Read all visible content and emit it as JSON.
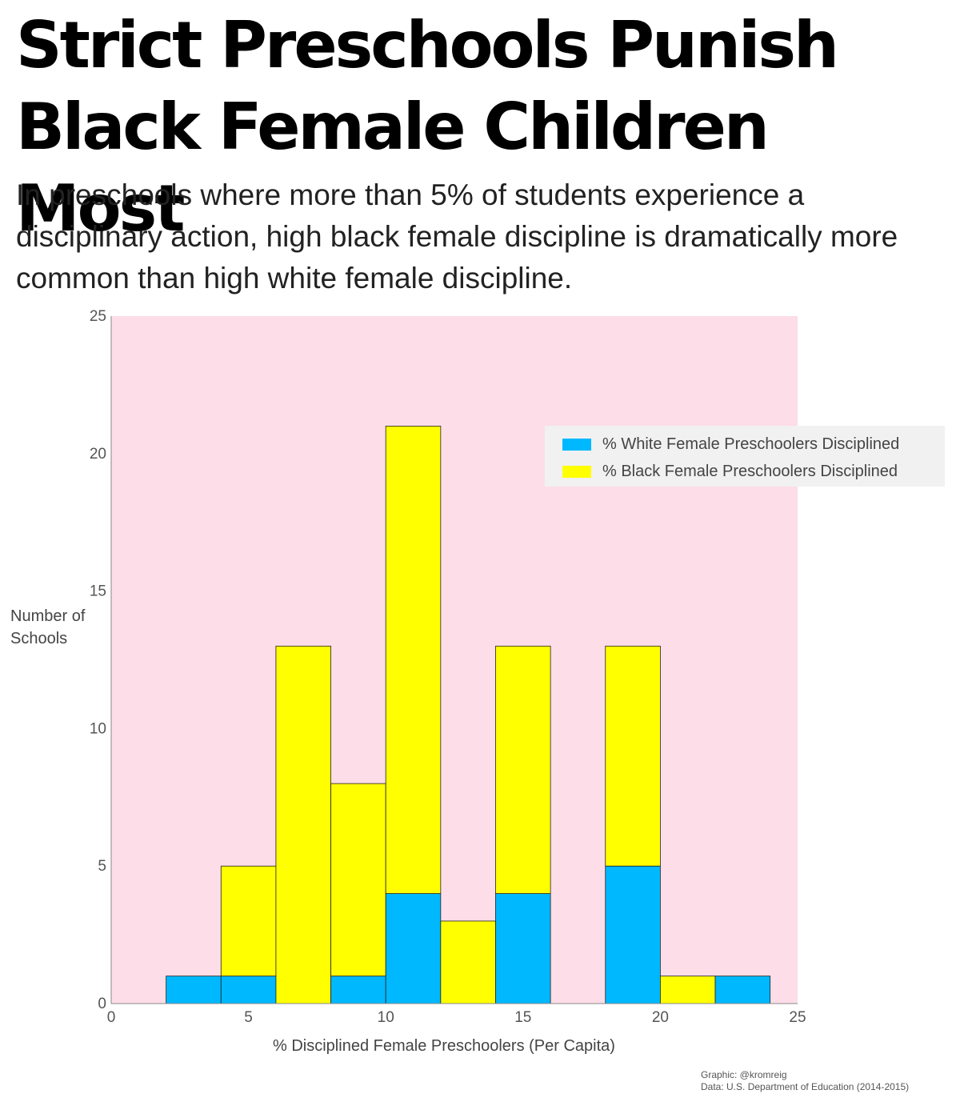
{
  "title": "Strict Preschools Punish Black Female Children Most",
  "subtitle": "In preschools where more than 5% of students experience a disciplinary action, high black female discipline is dramatically more common than high white female discipline.",
  "credits": {
    "graphic": "Graphic: @kromreig",
    "data": "Data: U.S. Department of Education (2014-2015)"
  },
  "colors": {
    "plot_background": "#fddde8",
    "white_series": "#00b8fe",
    "black_series": "#ffff00"
  },
  "chart_data": {
    "type": "bar",
    "stacked": true,
    "xlabel": "% Disciplined Female Preschoolers (Per Capita)",
    "ylabel": "Number of Schools",
    "xlim": [
      0,
      25
    ],
    "ylim": [
      0,
      25
    ],
    "xticks": [
      0,
      5,
      10,
      15,
      20,
      25
    ],
    "yticks": [
      0,
      5,
      10,
      15,
      20,
      25
    ],
    "bin_edges": [
      0,
      2,
      4,
      6,
      8,
      10,
      12,
      14,
      16,
      18,
      20,
      22,
      24
    ],
    "grid": false,
    "legend_position": "upper-right",
    "series": [
      {
        "name": "% White Female Preschoolers Disciplined",
        "color": "#00b8fe",
        "values": [
          0,
          1,
          1,
          0,
          1,
          4,
          0,
          4,
          0,
          5,
          0,
          1
        ]
      },
      {
        "name": "% Black Female Preschoolers Disciplined",
        "color": "#ffff00",
        "values": [
          0,
          0,
          4,
          13,
          7,
          17,
          3,
          9,
          0,
          8,
          1,
          0
        ]
      }
    ]
  }
}
